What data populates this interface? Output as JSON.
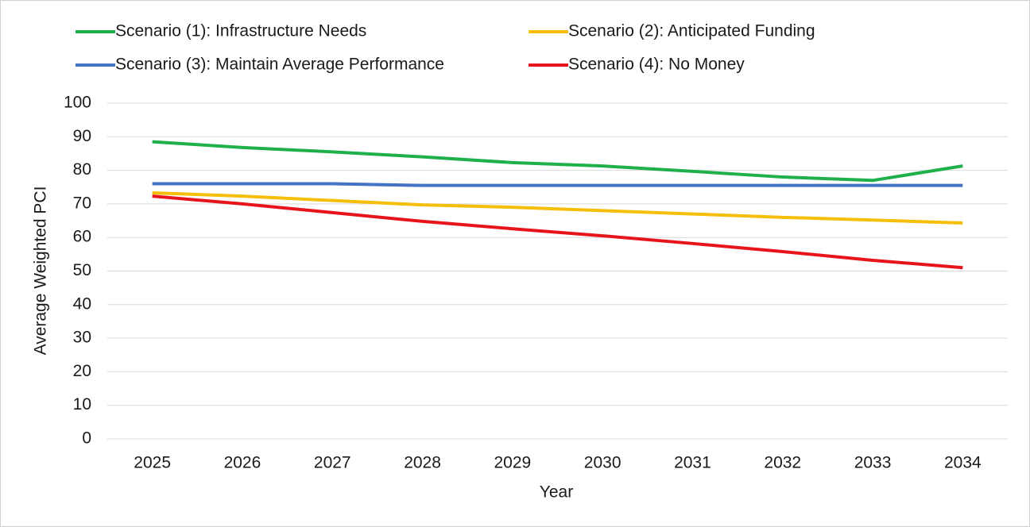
{
  "chart_data": {
    "type": "line",
    "x_label": "Year",
    "y_label": "Average Weighted PCI",
    "categories": [
      "2025",
      "2026",
      "2027",
      "2028",
      "2029",
      "2030",
      "2031",
      "2032",
      "2033",
      "2034"
    ],
    "series": [
      {
        "name": "Scenario (1): Infrastructure Needs",
        "color": "#1fb04c",
        "values": [
          88.5,
          86.8,
          85.5,
          84,
          82.3,
          81.3,
          79.7,
          78,
          77,
          81.3
        ]
      },
      {
        "name": "Scenario (2): Anticipated Funding",
        "color": "#f5be0b",
        "values": [
          73.3,
          72.3,
          71,
          69.7,
          69,
          68,
          67,
          66,
          65.2,
          64.3
        ]
      },
      {
        "name": "Scenario (3): Maintain Average Performance",
        "color": "#4472c4",
        "values": [
          76,
          76,
          76,
          75.5,
          75.5,
          75.5,
          75.5,
          75.5,
          75.5,
          75.5
        ]
      },
      {
        "name": "Scenario (4): No Money",
        "color": "#e8141b",
        "values": [
          72.3,
          70,
          67.4,
          64.8,
          62.6,
          60.5,
          58.2,
          55.8,
          53.2,
          51
        ]
      }
    ],
    "ylim": [
      0,
      100
    ],
    "yticks": [
      0,
      10,
      20,
      30,
      40,
      50,
      60,
      70,
      80,
      90,
      100
    ],
    "grid": true
  }
}
